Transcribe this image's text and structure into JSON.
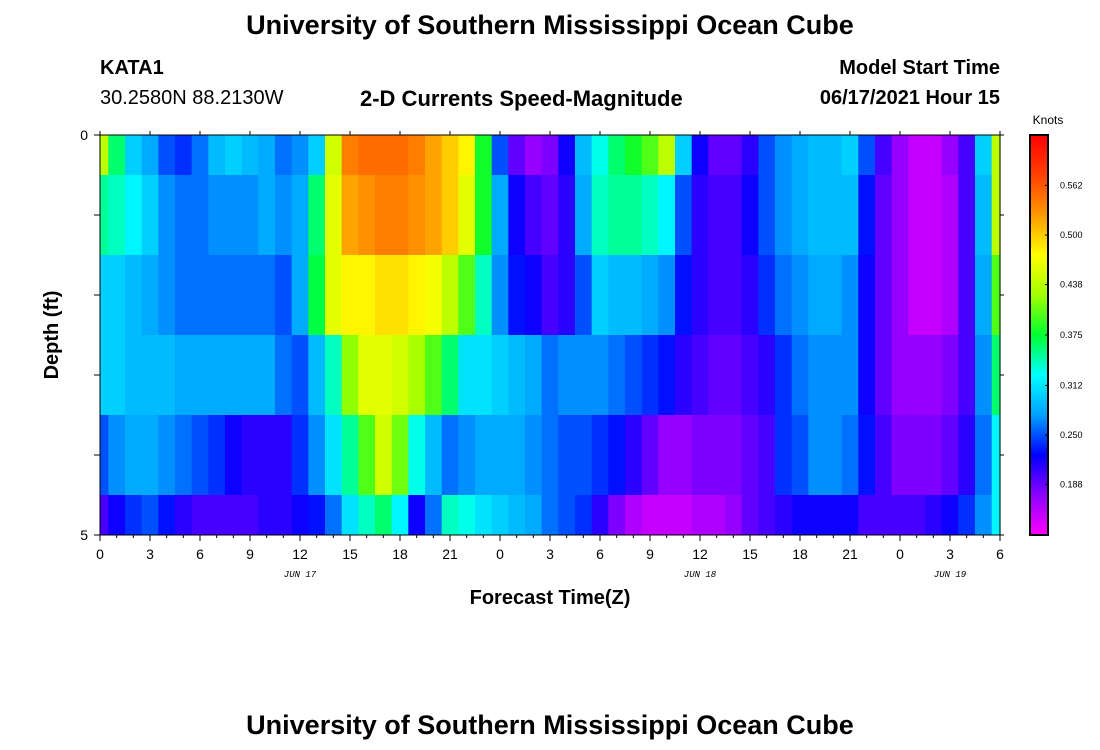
{
  "header": {
    "title": "University of Southern Mississippi Ocean Cube",
    "station": "KATA1",
    "coords": "30.2580N  88.2130W",
    "plot_title": "2-D Currents Speed-Magnitude",
    "model_label": "Model Start Time",
    "model_time": "06/17/2021 Hour 15"
  },
  "footer": {
    "title": "University of Southern Mississippi Ocean Cube"
  },
  "chart_data": {
    "type": "heatmap",
    "title": "2-D Currents Speed-Magnitude",
    "xlabel": "Forecast Time(Z)",
    "ylabel": "Depth (ft)",
    "ylim": [
      0,
      5
    ],
    "y_ticks": [
      "0",
      "5"
    ],
    "x_tick_labels": [
      "0",
      "3",
      "6",
      "9",
      "12",
      "15",
      "18",
      "21",
      "0",
      "3",
      "6",
      "9",
      "12",
      "15",
      "18",
      "21",
      "0",
      "3",
      "6"
    ],
    "date_labels": [
      {
        "label": "JUN 17",
        "hour": 12
      },
      {
        "label": "JUN 18",
        "hour": 36
      },
      {
        "label": "JUN 19",
        "hour": 51
      }
    ],
    "x_hours": [
      0,
      1,
      2,
      3,
      4,
      5,
      6,
      7,
      8,
      9,
      10,
      11,
      12,
      13,
      14,
      15,
      16,
      17,
      18,
      19,
      20,
      21,
      22,
      23,
      24,
      25,
      26,
      27,
      28,
      29,
      30,
      31,
      32,
      33,
      34,
      35,
      36,
      37,
      38,
      39,
      40,
      41,
      42,
      43,
      44,
      45,
      46,
      47,
      48,
      49,
      50,
      51,
      52,
      53,
      54
    ],
    "depth_bands": [
      "0-0.5",
      "0.5-1.5",
      "1.5-2.5",
      "2.5-3.5",
      "3.5-4.5",
      "4.5-5"
    ],
    "values": [
      [
        0.44,
        0.36,
        0.3,
        0.28,
        0.25,
        0.24,
        0.26,
        0.29,
        0.3,
        0.29,
        0.28,
        0.26,
        0.27,
        0.3,
        0.45,
        0.54,
        0.55,
        0.55,
        0.55,
        0.54,
        0.52,
        0.5,
        0.48,
        0.38,
        0.25,
        0.19,
        0.17,
        0.18,
        0.22,
        0.29,
        0.33,
        0.36,
        0.38,
        0.4,
        0.44,
        0.3,
        0.22,
        0.19,
        0.19,
        0.21,
        0.25,
        0.27,
        0.28,
        0.29,
        0.29,
        0.3,
        0.25,
        0.2,
        0.17,
        0.15,
        0.15,
        0.17,
        0.2,
        0.3,
        0.44
      ],
      [
        0.35,
        0.34,
        0.32,
        0.3,
        0.27,
        0.26,
        0.26,
        0.27,
        0.27,
        0.27,
        0.28,
        0.27,
        0.28,
        0.36,
        0.46,
        0.52,
        0.53,
        0.54,
        0.54,
        0.53,
        0.52,
        0.5,
        0.46,
        0.38,
        0.28,
        0.22,
        0.2,
        0.19,
        0.21,
        0.28,
        0.34,
        0.35,
        0.35,
        0.34,
        0.32,
        0.25,
        0.21,
        0.2,
        0.2,
        0.22,
        0.25,
        0.27,
        0.28,
        0.29,
        0.29,
        0.29,
        0.23,
        0.19,
        0.17,
        0.15,
        0.15,
        0.16,
        0.2,
        0.29,
        0.44
      ],
      [
        0.3,
        0.3,
        0.29,
        0.28,
        0.27,
        0.26,
        0.26,
        0.26,
        0.26,
        0.26,
        0.26,
        0.25,
        0.28,
        0.37,
        0.46,
        0.48,
        0.48,
        0.49,
        0.49,
        0.48,
        0.47,
        0.44,
        0.4,
        0.34,
        0.27,
        0.23,
        0.22,
        0.2,
        0.21,
        0.25,
        0.3,
        0.29,
        0.29,
        0.28,
        0.27,
        0.23,
        0.21,
        0.2,
        0.2,
        0.21,
        0.24,
        0.26,
        0.27,
        0.28,
        0.28,
        0.27,
        0.22,
        0.19,
        0.17,
        0.15,
        0.15,
        0.16,
        0.2,
        0.28,
        0.4
      ],
      [
        0.3,
        0.3,
        0.29,
        0.29,
        0.29,
        0.28,
        0.28,
        0.28,
        0.28,
        0.28,
        0.28,
        0.26,
        0.25,
        0.29,
        0.34,
        0.42,
        0.46,
        0.46,
        0.45,
        0.43,
        0.4,
        0.36,
        0.31,
        0.31,
        0.3,
        0.29,
        0.28,
        0.26,
        0.27,
        0.27,
        0.27,
        0.26,
        0.25,
        0.24,
        0.23,
        0.21,
        0.2,
        0.19,
        0.19,
        0.2,
        0.21,
        0.24,
        0.26,
        0.27,
        0.27,
        0.27,
        0.22,
        0.19,
        0.17,
        0.17,
        0.17,
        0.18,
        0.2,
        0.27,
        0.36
      ],
      [
        0.25,
        0.27,
        0.28,
        0.28,
        0.27,
        0.26,
        0.25,
        0.24,
        0.22,
        0.21,
        0.21,
        0.21,
        0.24,
        0.27,
        0.31,
        0.35,
        0.4,
        0.45,
        0.41,
        0.33,
        0.29,
        0.26,
        0.27,
        0.28,
        0.28,
        0.28,
        0.27,
        0.26,
        0.25,
        0.25,
        0.24,
        0.23,
        0.21,
        0.19,
        0.17,
        0.17,
        0.18,
        0.18,
        0.18,
        0.19,
        0.2,
        0.24,
        0.25,
        0.27,
        0.27,
        0.26,
        0.23,
        0.2,
        0.18,
        0.18,
        0.18,
        0.19,
        0.21,
        0.26,
        0.32
      ],
      [
        0.2,
        0.22,
        0.24,
        0.25,
        0.23,
        0.21,
        0.2,
        0.2,
        0.2,
        0.2,
        0.21,
        0.21,
        0.22,
        0.23,
        0.26,
        0.31,
        0.34,
        0.36,
        0.32,
        0.22,
        0.26,
        0.34,
        0.33,
        0.31,
        0.3,
        0.29,
        0.28,
        0.26,
        0.25,
        0.24,
        0.21,
        0.18,
        0.16,
        0.15,
        0.15,
        0.15,
        0.16,
        0.16,
        0.17,
        0.19,
        0.2,
        0.21,
        0.22,
        0.22,
        0.22,
        0.22,
        0.2,
        0.2,
        0.2,
        0.2,
        0.21,
        0.22,
        0.24,
        0.27,
        0.32
      ]
    ],
    "colorbar": {
      "label": "Knots",
      "ticks": [
        "0.188",
        "0.250",
        "0.312",
        "0.375",
        "0.438",
        "0.500",
        "0.562"
      ],
      "range": [
        0.125,
        0.625
      ],
      "colors": [
        "#ff00ff",
        "#8c00ff",
        "#0000ff",
        "#00a0ff",
        "#00ffff",
        "#00ff30",
        "#a0ff00",
        "#ffff00",
        "#ff9900",
        "#ff4000",
        "#ff0000"
      ]
    }
  }
}
